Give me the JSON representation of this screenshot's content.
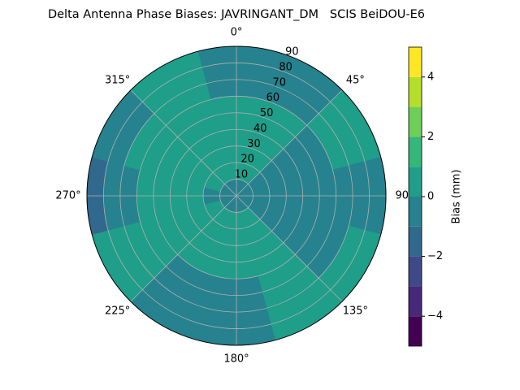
{
  "chart_data": {
    "type": "polar-contour",
    "title": "Delta Antenna Phase Biases: JAVRINGANT_DM   SCIS BeiDOU-E6",
    "theta_direction": "clockwise",
    "theta_zero": "N",
    "xticks": [
      {
        "value": 0,
        "label": "0°"
      },
      {
        "value": 45,
        "label": "45°"
      },
      {
        "value": 90,
        "label": "90°"
      },
      {
        "value": 135,
        "label": "135°"
      },
      {
        "value": 180,
        "label": "180°"
      },
      {
        "value": 225,
        "label": "225°"
      },
      {
        "value": 270,
        "label": "270°"
      },
      {
        "value": 315,
        "label": "315°"
      }
    ],
    "ylim": [
      0,
      90
    ],
    "yticks": [
      10,
      20,
      30,
      40,
      50,
      60,
      70,
      80,
      90
    ],
    "grid": true,
    "azimuths": [
      0,
      30,
      60,
      90,
      120,
      150,
      180,
      210,
      240,
      270,
      300,
      330
    ],
    "zenith_edges": [
      0,
      10,
      20,
      30,
      40,
      50,
      60,
      70,
      80,
      90
    ],
    "bias": [
      [
        -0.5,
        -0.5,
        -0.5,
        -0.5,
        -0.5,
        -0.5,
        -0.5,
        -0.5,
        -0.5,
        -0.5,
        -0.5,
        -0.5
      ],
      [
        0.5,
        0.5,
        -0.5,
        -0.5,
        -0.5,
        0.5,
        0.5,
        0.5,
        0.5,
        -0.5,
        0.5,
        0.5
      ],
      [
        0.5,
        0.5,
        -0.5,
        -0.5,
        -0.5,
        0.5,
        0.5,
        0.5,
        0.5,
        0.5,
        0.5,
        0.5
      ],
      [
        0.5,
        0.5,
        -0.5,
        -0.5,
        -0.5,
        0.5,
        0.5,
        0.5,
        0.5,
        0.5,
        0.5,
        0.5
      ],
      [
        0.5,
        0.5,
        -0.5,
        -0.5,
        -0.5,
        0.5,
        0.5,
        0.5,
        0.5,
        0.5,
        0.5,
        0.5
      ],
      [
        0.5,
        0.5,
        -0.5,
        -0.5,
        -0.5,
        0.5,
        -0.5,
        -0.5,
        0.5,
        0.5,
        0.5,
        0.5
      ],
      [
        -0.5,
        -0.5,
        0.5,
        -0.5,
        -0.5,
        0.5,
        -0.5,
        -0.5,
        0.5,
        -0.5,
        0.5,
        0.5
      ],
      [
        -0.5,
        -0.5,
        0.5,
        -0.5,
        0.5,
        0.5,
        -0.5,
        -0.5,
        0.5,
        -0.5,
        -0.5,
        0.5
      ],
      [
        -0.5,
        -0.5,
        0.5,
        -0.5,
        0.5,
        0.5,
        -0.5,
        -0.5,
        0.5,
        -1.5,
        -0.5,
        0.5
      ]
    ],
    "levels": [
      -5,
      -4,
      -3,
      -2,
      -1,
      0,
      1,
      2,
      3,
      4,
      5
    ],
    "colors": [
      "#440154",
      "#482878",
      "#3e4989",
      "#31688e",
      "#26828e",
      "#1f9e89",
      "#35b779",
      "#6ece58",
      "#b5de2b",
      "#fde725"
    ],
    "colorbar_label": "Bias (mm)",
    "colorbar_ticks": [
      {
        "value": -4,
        "label": "−4"
      },
      {
        "value": -2,
        "label": "−2"
      },
      {
        "value": 0,
        "label": "0"
      },
      {
        "value": 2,
        "label": "2"
      },
      {
        "value": 4,
        "label": "4"
      }
    ]
  }
}
